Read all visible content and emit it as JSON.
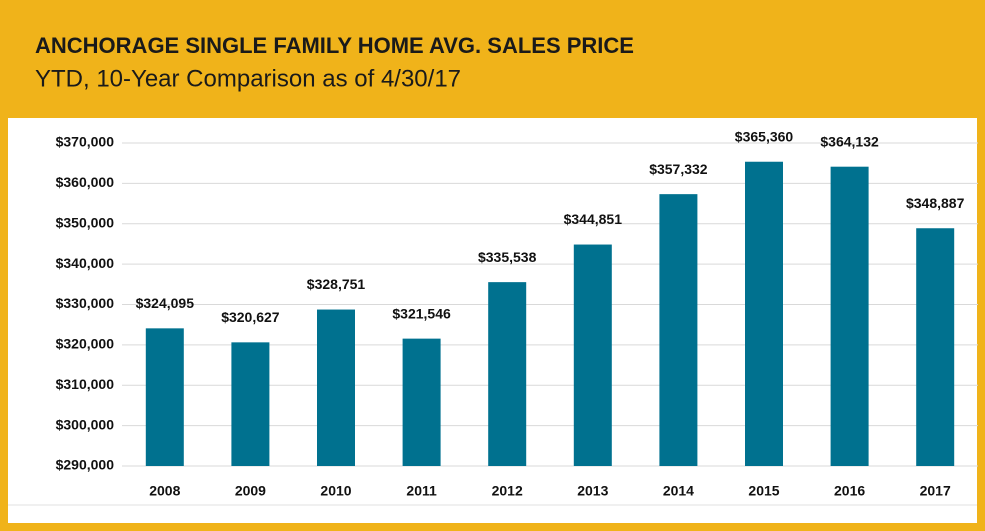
{
  "chart_data": {
    "type": "bar",
    "title": "ANCHORAGE SINGLE FAMILY HOME AVG. SALES PRICE",
    "subtitle": "YTD, 10-Year Comparison as of 4/30/17",
    "categories": [
      "2008",
      "2009",
      "2010",
      "2011",
      "2012",
      "2013",
      "2014",
      "2015",
      "2016",
      "2017"
    ],
    "values": [
      324095,
      320627,
      328751,
      321546,
      335538,
      344851,
      357332,
      365360,
      364132,
      348887
    ],
    "value_labels": [
      "$324,095",
      "$320,627",
      "$328,751",
      "$321,546",
      "$335,538",
      "$344,851",
      "$357,332",
      "$365,360",
      "$364,132",
      "$348,887"
    ],
    "color": "#00718f",
    "ylim": [
      290000,
      370000
    ],
    "yticks": [
      {
        "value": 290000,
        "label": "$290,000"
      },
      {
        "value": 300000,
        "label": "$300,000"
      },
      {
        "value": 310000,
        "label": "$310,000"
      },
      {
        "value": 320000,
        "label": "$320,000"
      },
      {
        "value": 330000,
        "label": "$330,000"
      },
      {
        "value": 340000,
        "label": "$340,000"
      },
      {
        "value": 350000,
        "label": "$350,000"
      },
      {
        "value": 360000,
        "label": "$360,000"
      },
      {
        "value": 370000,
        "label": "$370,000"
      }
    ],
    "grid": true
  }
}
